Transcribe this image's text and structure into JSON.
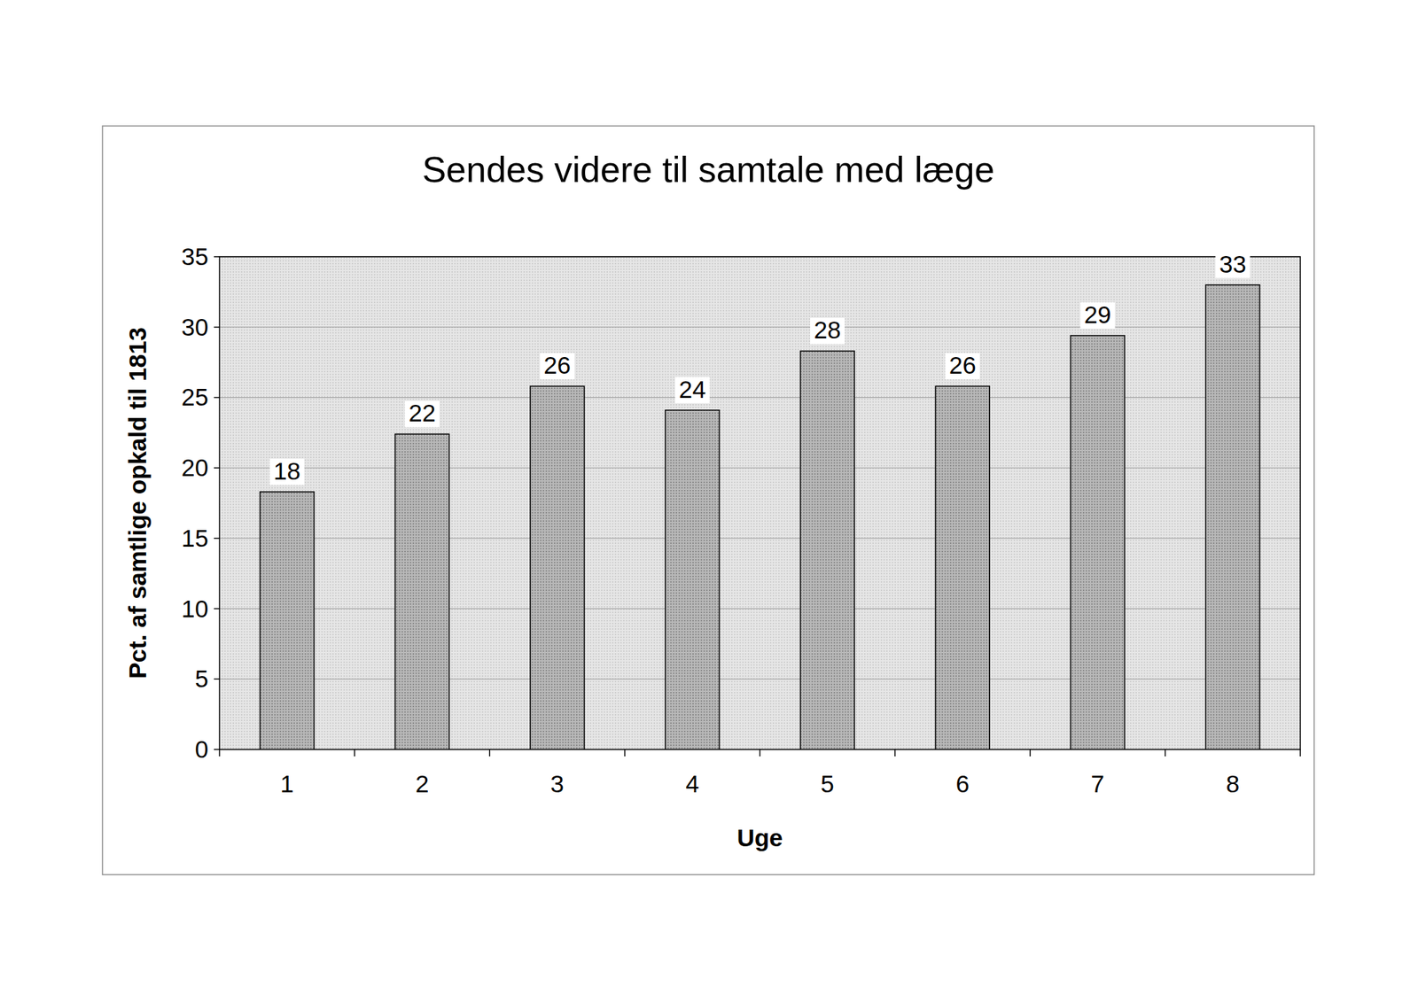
{
  "chart_data": {
    "type": "bar",
    "title": "Sendes videre til samtale med læge",
    "x_label": "Uge",
    "y_label": "Pct. af samtlige opkald til 1813",
    "categories": [
      "1",
      "2",
      "3",
      "4",
      "5",
      "6",
      "7",
      "8"
    ],
    "values": [
      18.3,
      22.4,
      25.8,
      24.1,
      28.3,
      25.8,
      29.4,
      33
    ],
    "value_labels": [
      "18",
      "22",
      "26",
      "24",
      "28",
      "26",
      "29",
      "33"
    ],
    "color": "#b8b8b8",
    "ylim": [
      0,
      35
    ],
    "yticks": [
      0,
      5,
      10,
      15,
      20,
      25,
      30,
      35
    ],
    "grid": true,
    "data_labels": true
  }
}
